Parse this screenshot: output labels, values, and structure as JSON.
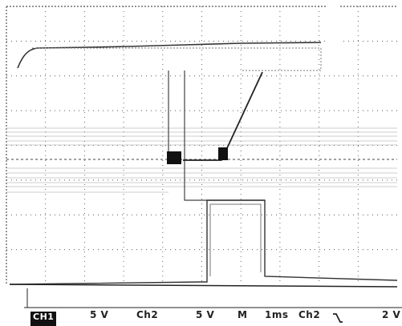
{
  "status_bar": {
    "ch1_label": "CH1",
    "ch1_scale": "5 V",
    "ch2_label": "Ch2",
    "ch2_scale": "5 V",
    "mode": "M",
    "timebase": "1ms",
    "trigger_source": "Ch2",
    "trigger_slope_icon": "falling-edge-icon",
    "trigger_level": "2 V"
  },
  "colors": {
    "trace": "#333333",
    "grid": "#555555",
    "background": "#ffffff"
  },
  "grid": {
    "divisions_x": 10,
    "divisions_y": 8
  }
}
